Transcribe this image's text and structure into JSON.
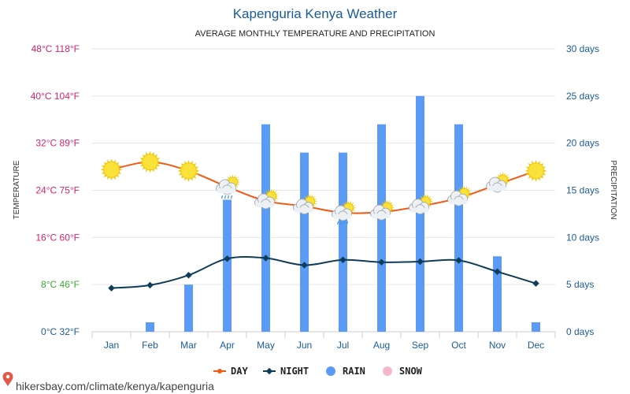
{
  "header": {
    "title": "Kapenguria Kenya Weather",
    "subtitle": "AVERAGE MONTHLY TEMPERATURE AND PRECIPITATION"
  },
  "footer": {
    "text": "hikersbay.com/climate/kenya/kapenguria"
  },
  "colors": {
    "day": "#f05a14",
    "night": "#0f3d57",
    "rain": "#5b9bf5",
    "snow": "#f4b8c8",
    "hot_label": "#d6246e",
    "mild_label": "#3aaa35",
    "cold_label": "#1a5b96",
    "right_label": "#1a5b96"
  },
  "chart_data": {
    "type": "bar+line",
    "categories": [
      "Jan",
      "Feb",
      "Mar",
      "Apr",
      "May",
      "Jun",
      "Jul",
      "Aug",
      "Sep",
      "Oct",
      "Nov",
      "Dec"
    ],
    "ylabel_left": "TEMPERATURE",
    "ylabel_right": "PRECIPITATION",
    "left_axis": {
      "ylim": [
        0,
        48
      ],
      "ticks": [
        {
          "value": 0,
          "label": "0°C 32°F",
          "color": "cold"
        },
        {
          "value": 8,
          "label": "8°C 46°F",
          "color": "mild"
        },
        {
          "value": 16,
          "label": "16°C 60°F",
          "color": "hot"
        },
        {
          "value": 24,
          "label": "24°C 75°F",
          "color": "hot"
        },
        {
          "value": 32,
          "label": "32°C 89°F",
          "color": "hot"
        },
        {
          "value": 40,
          "label": "40°C 104°F",
          "color": "hot"
        },
        {
          "value": 48,
          "label": "48°C 118°F",
          "color": "hot"
        }
      ]
    },
    "right_axis": {
      "ylim": [
        0,
        30
      ],
      "ticks": [
        {
          "value": 0,
          "label": "0 days"
        },
        {
          "value": 5,
          "label": "5 days"
        },
        {
          "value": 10,
          "label": "10 days"
        },
        {
          "value": 15,
          "label": "15 days"
        },
        {
          "value": 20,
          "label": "20 days"
        },
        {
          "value": 25,
          "label": "25 days"
        },
        {
          "value": 30,
          "label": "30 days"
        }
      ]
    },
    "grid": true,
    "legend_position": "bottom-center",
    "series": [
      {
        "name": "DAY",
        "kind": "line",
        "axis": "left",
        "values": [
          27.5,
          28.8,
          27.3,
          24.6,
          22.2,
          21.3,
          20.2,
          20.3,
          21.3,
          22.7,
          25.0,
          27.3
        ]
      },
      {
        "name": "NIGHT",
        "kind": "line",
        "axis": "left",
        "values": [
          7.4,
          7.9,
          9.6,
          12.4,
          12.5,
          11.3,
          12.2,
          11.8,
          11.9,
          12.1,
          10.2,
          8.2
        ]
      },
      {
        "name": "RAIN",
        "kind": "bar",
        "axis": "right",
        "values": [
          0,
          1,
          5,
          14,
          22,
          19,
          19,
          22,
          25,
          22,
          8,
          1
        ]
      },
      {
        "name": "SNOW",
        "kind": "bar",
        "axis": "right",
        "values": [
          0,
          0,
          0,
          0,
          0,
          0,
          0,
          0,
          0,
          0,
          0,
          0
        ]
      }
    ],
    "weather_icons": [
      "sun-icon",
      "sun-icon",
      "sun-icon",
      "cloud-rain-icon",
      "cloud-sun-icon",
      "cloud-sun-icon",
      "cloud-rain-icon",
      "cloud-sun-icon",
      "cloud-sun-icon",
      "cloud-sun-icon",
      "cloud-sun-icon",
      "sun-icon"
    ]
  }
}
